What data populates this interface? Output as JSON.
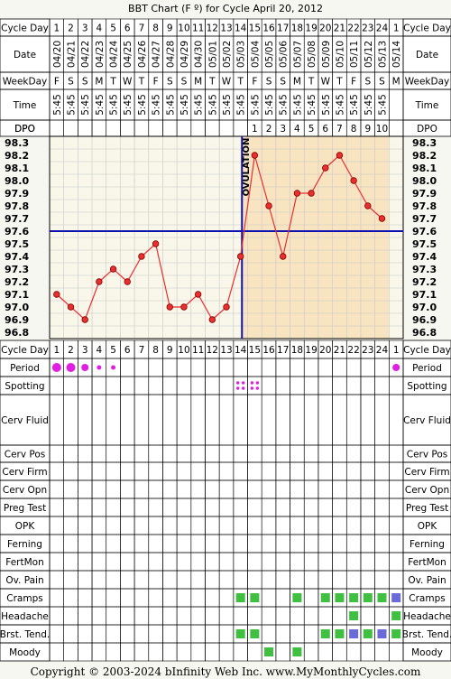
{
  "title": "BBT Chart (F º) for Cycle April 20, 2012",
  "footer": "Copyright © 2003-2024 bInfinity Web Inc.     www.MyMonthlyCycles.com",
  "row_labels": {
    "cycle_day": "Cycle Day",
    "date": "Date",
    "weekday": "WeekDay",
    "time": "Time",
    "dpo": "DPO",
    "period": "Period",
    "spotting": "Spotting",
    "cerv_fluid": "Cerv Fluid",
    "cerv_pos": "Cerv Pos",
    "cerv_firm": "Cerv Firm",
    "cerv_opn": "Cerv Opn",
    "preg_test": "Preg Test",
    "opk": "OPK",
    "ferning": "Ferning",
    "fertmon": "FertMon",
    "ov_pain": "Ov. Pain",
    "cramps": "Cramps",
    "headache": "Headache",
    "brst_tend": "Brst. Tend.",
    "moody": "Moody"
  },
  "ovulation_label": "OVULATION",
  "colors": {
    "temp_line": "#e83030",
    "coverline": "#1010b0",
    "ovulation_line": "#1010b0",
    "luteal_shade": "#f8e4c0",
    "period_dot": "#e020e0",
    "symptom_green": "#40c040",
    "symptom_blue": "#6a6ad8",
    "grid": "#c8c8c8",
    "axis": "#000000"
  },
  "chart_data": {
    "type": "line",
    "title": "BBT Chart (F º) for Cycle April 20, 2012",
    "cycle_days": [
      1,
      2,
      3,
      4,
      5,
      6,
      7,
      8,
      9,
      10,
      11,
      12,
      13,
      14,
      15,
      16,
      17,
      18,
      19,
      20,
      21,
      22,
      23,
      24,
      1
    ],
    "dates": [
      "04/20",
      "04/21",
      "04/22",
      "04/23",
      "04/24",
      "04/25",
      "04/26",
      "04/27",
      "04/28",
      "04/29",
      "04/30",
      "05/01",
      "05/02",
      "05/03",
      "05/04",
      "05/05",
      "05/06",
      "05/07",
      "05/08",
      "05/09",
      "05/10",
      "05/11",
      "05/12",
      "05/13",
      "05/14"
    ],
    "weekdays": [
      "F",
      "S",
      "S",
      "M",
      "T",
      "W",
      "T",
      "F",
      "S",
      "S",
      "M",
      "T",
      "W",
      "T",
      "F",
      "S",
      "S",
      "M",
      "T",
      "W",
      "T",
      "F",
      "S",
      "S",
      "M"
    ],
    "times": [
      "5:45",
      "5:45",
      "5:45",
      "5:45",
      "5:45",
      "5:45",
      "5:45",
      "5:45",
      "5:45",
      "5:45",
      "5:45",
      "5:45",
      "5:45",
      "5:45",
      "5:45",
      "5:45",
      "5:45",
      "5:45",
      "5:45",
      "5:45",
      "5:45",
      "5:45",
      "5:45",
      "5:45",
      ""
    ],
    "dpo": [
      "",
      "",
      "",
      "",
      "",
      "",
      "",
      "",
      "",
      "",
      "",
      "",
      "",
      "",
      "1",
      "2",
      "3",
      "4",
      "5",
      "6",
      "7",
      "8",
      "9",
      "10",
      ""
    ],
    "temperatures": [
      97.1,
      97.0,
      96.9,
      97.2,
      97.3,
      97.2,
      97.4,
      97.5,
      97.0,
      97.0,
      97.1,
      96.9,
      97.0,
      97.4,
      98.2,
      97.8,
      97.4,
      97.9,
      97.9,
      98.1,
      98.2,
      98.0,
      97.8,
      97.7,
      null
    ],
    "ylim": [
      96.8,
      98.3
    ],
    "y_ticks": [
      "98.3",
      "98.2",
      "98.1",
      "98.0",
      "97.9",
      "97.8",
      "97.7",
      "97.6",
      "97.5",
      "97.4",
      "97.3",
      "97.2",
      "97.1",
      "97.0",
      "96.9",
      "96.8"
    ],
    "coverline": 97.6,
    "ovulation_day": 14,
    "series": [
      {
        "name": "",
        "values": [
          97.1,
          97.0,
          96.9,
          97.2,
          97.3,
          97.2,
          97.4,
          97.5,
          97.0,
          97.0,
          97.1,
          96.9,
          97.0,
          97.4,
          98.2,
          97.8,
          97.4,
          97.9,
          97.9,
          98.1,
          98.2,
          98.0,
          97.8,
          97.7,
          null
        ]
      }
    ],
    "period": [
      {
        "col": 1,
        "size": "large"
      },
      {
        "col": 2,
        "size": "large"
      },
      {
        "col": 3,
        "size": "medium"
      },
      {
        "col": 4,
        "size": "small"
      },
      {
        "col": 5,
        "size": "small"
      },
      {
        "col": 25,
        "size": "medium"
      }
    ],
    "spotting": [
      14,
      15
    ],
    "symptoms": {
      "cramps": [
        {
          "col": 14,
          "color": "green"
        },
        {
          "col": 15,
          "color": "green"
        },
        {
          "col": 18,
          "color": "green"
        },
        {
          "col": 20,
          "color": "green"
        },
        {
          "col": 21,
          "color": "green"
        },
        {
          "col": 22,
          "color": "green"
        },
        {
          "col": 23,
          "color": "green"
        },
        {
          "col": 24,
          "color": "green"
        },
        {
          "col": 25,
          "color": "blue"
        }
      ],
      "headache": [
        {
          "col": 22,
          "color": "green"
        },
        {
          "col": 25,
          "color": "green"
        }
      ],
      "brst_tend": [
        {
          "col": 14,
          "color": "green"
        },
        {
          "col": 15,
          "color": "green"
        },
        {
          "col": 20,
          "color": "green"
        },
        {
          "col": 21,
          "color": "green"
        },
        {
          "col": 22,
          "color": "blue"
        },
        {
          "col": 23,
          "color": "green"
        },
        {
          "col": 24,
          "color": "blue"
        },
        {
          "col": 25,
          "color": "green"
        }
      ],
      "moody": [
        {
          "col": 16,
          "color": "green"
        },
        {
          "col": 18,
          "color": "green"
        }
      ]
    }
  }
}
